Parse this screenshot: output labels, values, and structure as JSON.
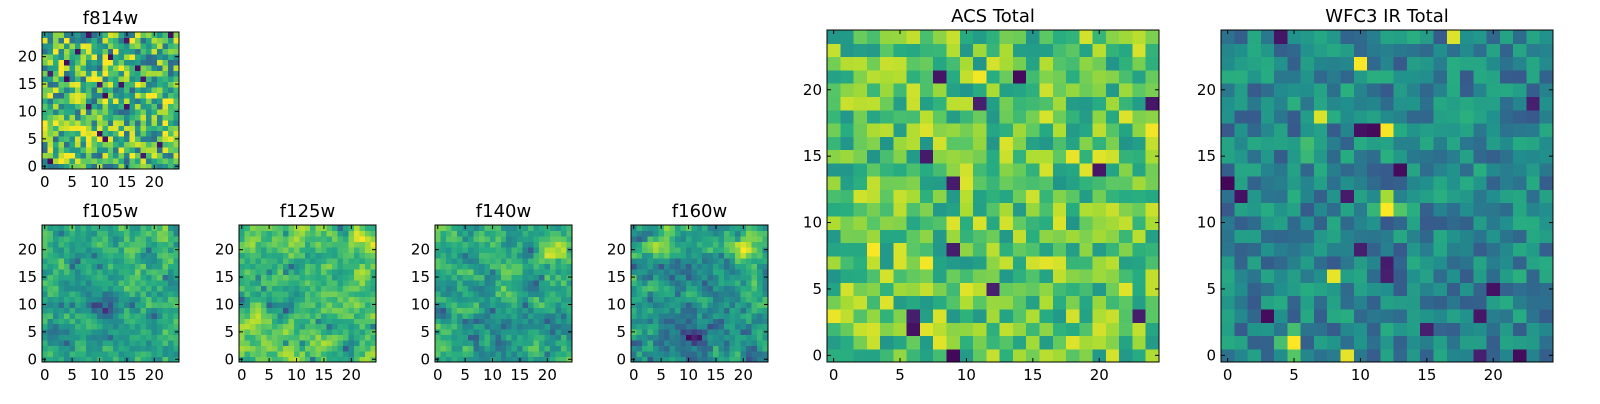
{
  "chart_data": [
    {
      "type": "heatmap",
      "title": "f814w",
      "xlim": [
        0,
        24
      ],
      "ylim": [
        0,
        24
      ],
      "xticks": [
        0,
        5,
        10,
        15,
        20
      ],
      "yticks": [
        0,
        5,
        10,
        15,
        20
      ],
      "colormap": "viridis",
      "vmin": 0,
      "vmax": 1,
      "grid": "off",
      "seed": 11,
      "bias": 0.68,
      "spread": 0.34,
      "smooth": 0,
      "blobs": []
    },
    {
      "type": "heatmap",
      "title": "f105w",
      "xlim": [
        0,
        24
      ],
      "ylim": [
        0,
        24
      ],
      "xticks": [
        0,
        5,
        10,
        15,
        20
      ],
      "yticks": [
        0,
        5,
        10,
        15,
        20
      ],
      "colormap": "viridis",
      "vmin": 0,
      "vmax": 1,
      "grid": "off",
      "seed": 23,
      "bias": 0.62,
      "spread": 0.28,
      "smooth": 1,
      "blobs": [
        {
          "x": 10,
          "y": 10,
          "r": 5,
          "v": -0.25
        },
        {
          "x": 4,
          "y": 5,
          "r": 4,
          "v": -0.15
        },
        {
          "x": 22,
          "y": 22,
          "r": 2,
          "v": 0.25
        }
      ]
    },
    {
      "type": "heatmap",
      "title": "f125w",
      "xlim": [
        0,
        24
      ],
      "ylim": [
        0,
        24
      ],
      "xticks": [
        0,
        5,
        10,
        15,
        20
      ],
      "yticks": [
        0,
        5,
        10,
        15,
        20
      ],
      "colormap": "viridis",
      "vmin": 0,
      "vmax": 1,
      "grid": "off",
      "seed": 37,
      "bias": 0.72,
      "spread": 0.28,
      "smooth": 1,
      "blobs": [
        {
          "x": 8,
          "y": 10,
          "r": 4,
          "v": -0.2
        },
        {
          "x": 20,
          "y": 3,
          "r": 3,
          "v": -0.15
        },
        {
          "x": 22,
          "y": 22,
          "r": 3,
          "v": 0.2
        }
      ]
    },
    {
      "type": "heatmap",
      "title": "f140w",
      "xlim": [
        0,
        24
      ],
      "ylim": [
        0,
        24
      ],
      "xticks": [
        0,
        5,
        10,
        15,
        20
      ],
      "yticks": [
        0,
        5,
        10,
        15,
        20
      ],
      "colormap": "viridis",
      "vmin": 0,
      "vmax": 1,
      "grid": "off",
      "seed": 53,
      "bias": 0.6,
      "spread": 0.3,
      "smooth": 1,
      "blobs": [
        {
          "x": 12,
          "y": 6,
          "r": 6,
          "v": -0.2
        },
        {
          "x": 21,
          "y": 19,
          "r": 3,
          "v": 0.3
        },
        {
          "x": 5,
          "y": 18,
          "r": 2,
          "v": -0.2
        }
      ]
    },
    {
      "type": "heatmap",
      "title": "f160w",
      "xlim": [
        0,
        24
      ],
      "ylim": [
        0,
        24
      ],
      "xticks": [
        0,
        5,
        10,
        15,
        20
      ],
      "yticks": [
        0,
        5,
        10,
        15,
        20
      ],
      "colormap": "viridis",
      "vmin": 0,
      "vmax": 1,
      "grid": "off",
      "seed": 71,
      "bias": 0.55,
      "spread": 0.3,
      "smooth": 1,
      "blobs": [
        {
          "x": 10,
          "y": 4,
          "r": 7,
          "v": -0.25
        },
        {
          "x": 20,
          "y": 21,
          "r": 4,
          "v": 0.35
        },
        {
          "x": 4,
          "y": 20,
          "r": 3,
          "v": 0.2
        }
      ]
    },
    {
      "type": "heatmap",
      "title": "ACS Total",
      "xlim": [
        0,
        24
      ],
      "ylim": [
        0,
        24
      ],
      "xticks": [
        0,
        5,
        10,
        15,
        20
      ],
      "yticks": [
        0,
        5,
        10,
        15,
        20
      ],
      "colormap": "viridis",
      "vmin": 0,
      "vmax": 1,
      "grid": "off",
      "seed": 97,
      "bias": 0.74,
      "spread": 0.22,
      "smooth": 0,
      "blobs": []
    },
    {
      "type": "heatmap",
      "title": "WFC3 IR Total",
      "xlim": [
        0,
        24
      ],
      "ylim": [
        0,
        24
      ],
      "xticks": [
        0,
        5,
        10,
        15,
        20
      ],
      "yticks": [
        0,
        5,
        10,
        15,
        20
      ],
      "colormap": "viridis",
      "vmin": 0,
      "vmax": 1,
      "grid": "off",
      "seed": 131,
      "bias": 0.46,
      "spread": 0.18,
      "smooth": 0,
      "blobs": [
        {
          "x": 12,
          "y": 11,
          "r": 1,
          "v": 0.5
        },
        {
          "x": 5,
          "y": 1,
          "r": 1,
          "v": 0.5
        },
        {
          "x": 6,
          "y": 16,
          "r": 1,
          "v": 0.4
        }
      ]
    }
  ]
}
